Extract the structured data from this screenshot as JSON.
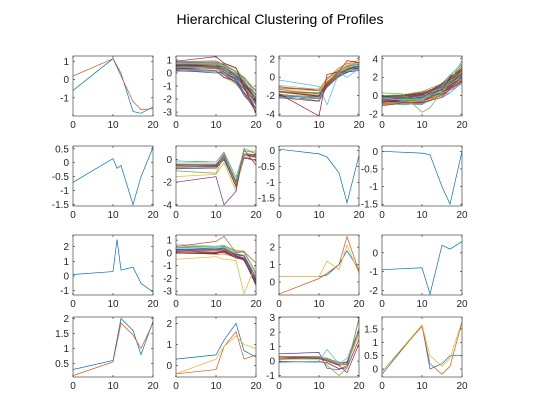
{
  "title": "Hierarchical Clustering of Profiles",
  "colors": [
    "#0072BD",
    "#D95319",
    "#EDB120",
    "#7E2F8E",
    "#77AC30",
    "#4DBEEE",
    "#A2142F"
  ],
  "chart_data": [
    {
      "type": "line",
      "x": [
        0,
        10,
        12,
        15,
        17,
        20
      ],
      "xlim": [
        0,
        20
      ],
      "xticks": [
        0,
        10,
        20
      ],
      "ylim": [
        -2,
        1.3
      ],
      "yticks": [
        1,
        0,
        -1
      ],
      "series": [
        {
          "values": [
            -0.6,
            1.15,
            0.35,
            -1.75,
            -1.85,
            -1.5
          ]
        },
        {
          "values": [
            0.2,
            1.15,
            0.2,
            -1.2,
            -1.65,
            -1.6
          ]
        }
      ],
      "bundle": null
    },
    {
      "type": "line",
      "x": [
        0,
        10,
        12,
        15,
        17,
        20
      ],
      "xlim": [
        0,
        20
      ],
      "xticks": [
        0,
        10,
        20
      ],
      "ylim": [
        -3.3,
        1.3
      ],
      "yticks": [
        1,
        0,
        -1,
        -2,
        -3
      ],
      "series": [
        {
          "values": [
            0.9,
            1.25,
            0.75,
            0.4,
            -1.0,
            -3.1
          ]
        },
        {
          "values": [
            0.2,
            0.0,
            0.1,
            -0.5,
            -1.5,
            -2.7
          ]
        }
      ],
      "bundle": {
        "base": [
          0.5,
          0.5,
          0.2,
          -0.3,
          -1.0,
          -2.2
        ],
        "spread": [
          0.35,
          0.35,
          0.5,
          0.5,
          0.7,
          0.8
        ],
        "count": 34
      }
    },
    {
      "type": "line",
      "x": [
        0,
        10,
        12,
        15,
        17,
        20
      ],
      "xlim": [
        0,
        20
      ],
      "xticks": [
        0,
        10,
        20
      ],
      "ylim": [
        -4.2,
        2.3
      ],
      "yticks": [
        2,
        0,
        -2,
        -4
      ],
      "series": [
        {
          "values": [
            -0.3,
            -1.0,
            -3.0,
            0.5,
            0.0,
            0.9
          ]
        },
        {
          "values": [
            -1.8,
            -4.2,
            0.3,
            0.6,
            1.8,
            1.6
          ]
        }
      ],
      "bundle": {
        "base": [
          -1.5,
          -1.8,
          -0.5,
          0.5,
          1.0,
          1.3
        ],
        "spread": [
          0.6,
          0.7,
          0.6,
          0.5,
          0.5,
          0.5
        ],
        "count": 26
      }
    },
    {
      "type": "line",
      "x": [
        0,
        5,
        10,
        12,
        15,
        17,
        20
      ],
      "xlim": [
        0,
        20
      ],
      "xticks": [
        0,
        10,
        20
      ],
      "ylim": [
        -2.2,
        4.3
      ],
      "yticks": [
        4,
        2,
        0,
        -2
      ],
      "series": [
        {
          "values": [
            0.3,
            0.2,
            -1.8,
            -1.3,
            0.5,
            1.5,
            3.8
          ]
        },
        {
          "values": [
            -0.2,
            -0.5,
            -0.3,
            0.2,
            0.9,
            2.2,
            3.5
          ]
        }
      ],
      "bundle": {
        "base": [
          -0.5,
          -0.4,
          -0.2,
          0.1,
          0.6,
          1.3,
          2.3
        ],
        "spread": [
          0.5,
          0.5,
          0.6,
          0.6,
          0.7,
          0.8,
          0.9
        ],
        "count": 60
      }
    },
    {
      "type": "line",
      "x": [
        0,
        10,
        11,
        12,
        15,
        17,
        20
      ],
      "xlim": [
        0,
        20
      ],
      "xticks": [
        0,
        10,
        20
      ],
      "ylim": [
        -1.55,
        0.6
      ],
      "yticks": [
        0.5,
        0,
        -0.5,
        -1,
        -1.5
      ],
      "series": [
        {
          "values": [
            -0.7,
            0.15,
            -0.2,
            -0.1,
            -1.5,
            -0.5,
            0.55
          ]
        }
      ],
      "bundle": null
    },
    {
      "type": "line",
      "x": [
        0,
        10,
        12,
        15,
        17,
        20
      ],
      "xlim": [
        0,
        20
      ],
      "xticks": [
        0,
        10,
        20
      ],
      "ylim": [
        -4.1,
        1.2
      ],
      "yticks": [
        0,
        -2,
        -4
      ],
      "series": [
        {
          "values": [
            -1.5,
            -1.3,
            -0.3,
            -2.8,
            0.5,
            -0.2
          ]
        },
        {
          "values": [
            -2.0,
            -1.5,
            -4.0,
            -2.8,
            0.9,
            -0.5
          ]
        },
        {
          "values": [
            -1.0,
            -1.2,
            0.3,
            -2.2,
            1.0,
            0.5
          ]
        }
      ],
      "bundle": {
        "base": [
          -0.5,
          -0.5,
          0.3,
          -2.0,
          0.4,
          0.3
        ],
        "spread": [
          0.3,
          0.3,
          0.3,
          0.4,
          0.3,
          0.4
        ],
        "count": 16
      }
    },
    {
      "type": "line",
      "x": [
        0,
        10,
        12,
        15,
        17,
        20
      ],
      "xlim": [
        0,
        20
      ],
      "xticks": [
        0,
        10,
        20
      ],
      "ylim": [
        -1.75,
        0.15
      ],
      "yticks": [
        0,
        -0.5,
        -1,
        -1.5
      ],
      "series": [
        {
          "values": [
            0.05,
            -0.1,
            -0.2,
            -0.7,
            -1.65,
            -0.15
          ]
        }
      ],
      "bundle": null
    },
    {
      "type": "line",
      "x": [
        0,
        10,
        12,
        15,
        17,
        20
      ],
      "xlim": [
        0,
        20
      ],
      "xticks": [
        0,
        10,
        20
      ],
      "ylim": [
        -1.55,
        0.15
      ],
      "yticks": [
        0,
        -0.5,
        -1,
        -1.5
      ],
      "series": [
        {
          "values": [
            0.0,
            -0.05,
            -0.1,
            -1.0,
            -1.5,
            0.0
          ]
        }
      ],
      "bundle": null
    },
    {
      "type": "line",
      "x": [
        0,
        10,
        11,
        12,
        15,
        17,
        20
      ],
      "xlim": [
        0,
        20
      ],
      "xticks": [
        0,
        10,
        20
      ],
      "ylim": [
        -1.3,
        2.8
      ],
      "yticks": [
        2,
        1,
        0,
        -1
      ],
      "series": [
        {
          "values": [
            0.1,
            0.3,
            2.5,
            0.4,
            0.6,
            -0.5,
            -1.1
          ]
        }
      ],
      "bundle": null
    },
    {
      "type": "line",
      "x": [
        0,
        10,
        12,
        15,
        17,
        20
      ],
      "xlim": [
        0,
        20
      ],
      "xticks": [
        0,
        10,
        20
      ],
      "ylim": [
        -3.3,
        1.4
      ],
      "yticks": [
        1,
        0,
        -1,
        -2,
        -3
      ],
      "series": [
        {
          "values": [
            0.5,
            0.9,
            1.3,
            0.0,
            0.1,
            -0.8
          ]
        },
        {
          "values": [
            -0.5,
            -0.3,
            -0.5,
            -0.6,
            -3.2,
            -0.9
          ]
        }
      ],
      "bundle": {
        "base": [
          0.3,
          0.2,
          0.3,
          -0.1,
          -0.2,
          -2.0
        ],
        "spread": [
          0.3,
          0.3,
          0.3,
          0.3,
          0.4,
          0.5
        ],
        "count": 22
      }
    },
    {
      "type": "line",
      "x": [
        0,
        10,
        12,
        15,
        17,
        20
      ],
      "xlim": [
        0,
        20
      ],
      "xticks": [
        0,
        10,
        20
      ],
      "ylim": [
        -0.75,
        2.7
      ],
      "yticks": [
        2,
        1,
        0
      ],
      "series": [
        {
          "values": [
            0.3,
            0.3,
            0.4,
            1.0,
            1.8,
            0.7
          ]
        },
        {
          "values": [
            -0.7,
            0.2,
            0.5,
            1.0,
            2.6,
            0.6
          ]
        },
        {
          "values": [
            0.3,
            0.3,
            1.2,
            0.7,
            2.1,
            0.5
          ]
        }
      ],
      "bundle": null
    },
    {
      "type": "line",
      "x": [
        0,
        10,
        12,
        15,
        17,
        20
      ],
      "xlim": [
        0,
        20
      ],
      "xticks": [
        0,
        10,
        20
      ],
      "ylim": [
        -2.25,
        0.95
      ],
      "yticks": [
        0,
        -1,
        -2
      ],
      "series": [
        {
          "values": [
            -0.9,
            -0.8,
            -2.2,
            0.4,
            0.2,
            0.6
          ]
        }
      ],
      "bundle": null
    },
    {
      "type": "line",
      "x": [
        0,
        10,
        12,
        15,
        17,
        20
      ],
      "xlim": [
        0,
        20
      ],
      "xticks": [
        0,
        10,
        20
      ],
      "ylim": [
        0.05,
        2.05
      ],
      "yticks": [
        2,
        1.5,
        1,
        0.5
      ],
      "series": [
        {
          "values": [
            0.3,
            0.6,
            2.0,
            1.6,
            0.8,
            1.9
          ]
        },
        {
          "values": [
            0.1,
            0.55,
            1.85,
            1.45,
            1.0,
            1.85
          ]
        }
      ],
      "bundle": null
    },
    {
      "type": "line",
      "x": [
        0,
        10,
        12,
        15,
        17,
        20
      ],
      "xlim": [
        0,
        20
      ],
      "xticks": [
        0,
        10,
        20
      ],
      "ylim": [
        -0.55,
        2.3
      ],
      "yticks": [
        2,
        1,
        0
      ],
      "series": [
        {
          "values": [
            0.3,
            0.5,
            1.2,
            2.0,
            0.7,
            0.4
          ]
        },
        {
          "values": [
            -0.4,
            -0.2,
            0.9,
            1.6,
            0.3,
            0.5
          ]
        },
        {
          "values": [
            -0.4,
            0.3,
            0.9,
            1.4,
            1.0,
            0.8
          ]
        }
      ],
      "bundle": null
    },
    {
      "type": "line",
      "x": [
        0,
        10,
        12,
        15,
        17,
        20
      ],
      "xlim": [
        0,
        20
      ],
      "xticks": [
        0,
        10,
        20
      ],
      "ylim": [
        -1.1,
        3.05
      ],
      "yticks": [
        3,
        2,
        1,
        0,
        -1
      ],
      "series": [
        {
          "values": [
            0.5,
            0.6,
            -0.5,
            -0.6,
            -0.3,
            2.9
          ]
        },
        {
          "values": [
            0.2,
            0.3,
            -0.3,
            -1.0,
            -0.5,
            3.0
          ]
        },
        {
          "values": [
            -0.1,
            0.0,
            0.8,
            -0.2,
            0.2,
            2.2
          ]
        },
        {
          "values": [
            0.3,
            0.2,
            0.0,
            -0.3,
            -0.8,
            1.2
          ]
        }
      ],
      "bundle": {
        "base": [
          0.1,
          0.1,
          0.0,
          -0.3,
          -0.3,
          1.8
        ],
        "spread": [
          0.2,
          0.2,
          0.2,
          0.3,
          0.3,
          0.5
        ],
        "count": 10
      }
    },
    {
      "type": "line",
      "x": [
        0,
        10,
        12,
        15,
        17,
        20
      ],
      "xlim": [
        0,
        20
      ],
      "xticks": [
        0,
        10,
        20
      ],
      "ylim": [
        -0.3,
        1.95
      ],
      "yticks": [
        1.5,
        1,
        0.5,
        0
      ],
      "series": [
        {
          "values": [
            -0.2,
            1.65,
            0.0,
            0.2,
            0.5,
            0.5
          ]
        },
        {
          "values": [
            -0.1,
            1.6,
            0.2,
            -0.2,
            0.1,
            1.75
          ]
        },
        {
          "values": [
            -0.1,
            1.65,
            0.5,
            0.1,
            0.4,
            1.8
          ]
        }
      ],
      "bundle": null
    }
  ]
}
